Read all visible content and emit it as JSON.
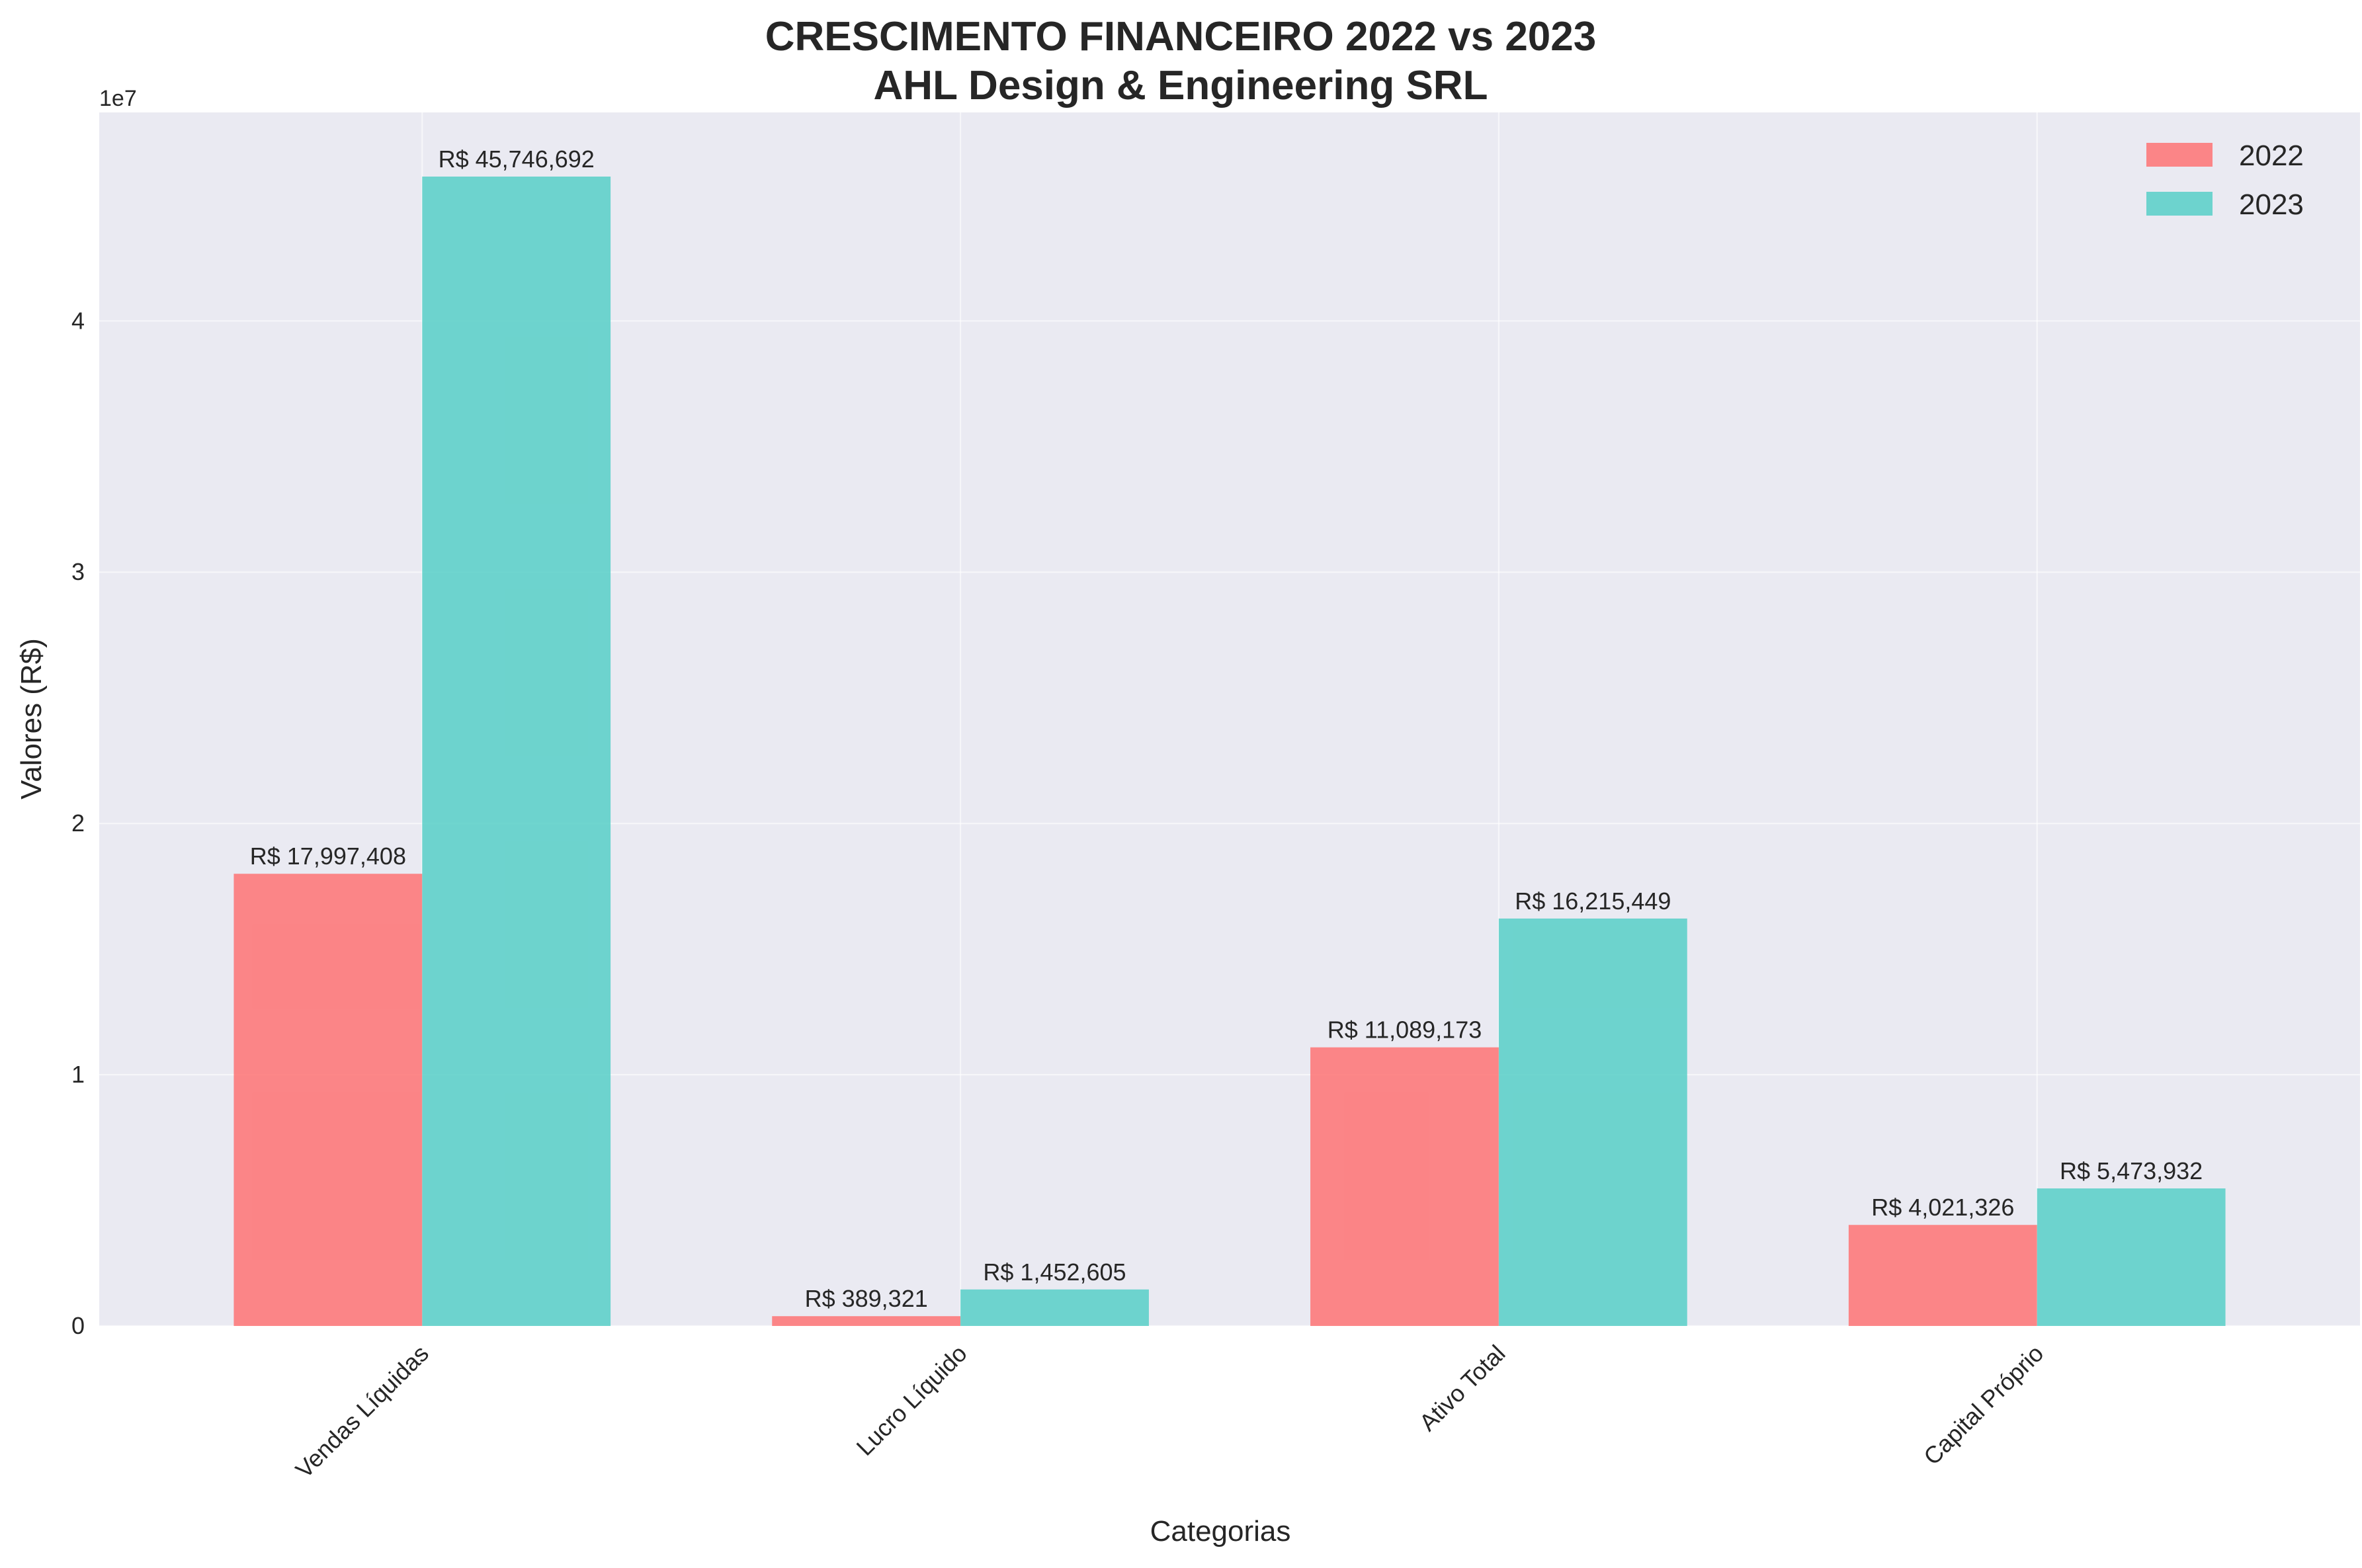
{
  "chart_data": {
    "type": "bar",
    "title_lines": [
      "CRESCIMENTO FINANCEIRO 2022 vs 2023",
      "AHL Design & Engineering SRL"
    ],
    "xlabel": "Categorias",
    "ylabel": "Valores (R$)",
    "y_offset_text": "1e7",
    "categories": [
      "Vendas Líquidas",
      "Lucro Líquido",
      "Ativo Total",
      "Capital Próprio"
    ],
    "series": [
      {
        "name": "2022",
        "color": "#FF6B6B",
        "values": [
          17997408,
          389321,
          11089173,
          4021326
        ],
        "labels": [
          "R$ 17,997,408",
          "R$ 389,321",
          "R$ 11,089,173",
          "R$ 4,021,326"
        ]
      },
      {
        "name": "2023",
        "color": "#4ECDC4",
        "values": [
          45746692,
          1452605,
          16215449,
          5473932
        ],
        "labels": [
          "R$ 45,746,692",
          "R$ 1,452,605",
          "R$ 16,215,449",
          "R$ 5,473,932"
        ]
      }
    ],
    "ylim": [
      0,
      48300000
    ],
    "yticks": [
      0,
      10000000,
      20000000,
      30000000,
      40000000
    ],
    "ytick_labels": [
      "0",
      "1",
      "2",
      "3",
      "4"
    ],
    "grid": true,
    "legend_position": "top-right",
    "plot_background": "#EAEAF2",
    "grid_color": "#FFFFFF"
  }
}
